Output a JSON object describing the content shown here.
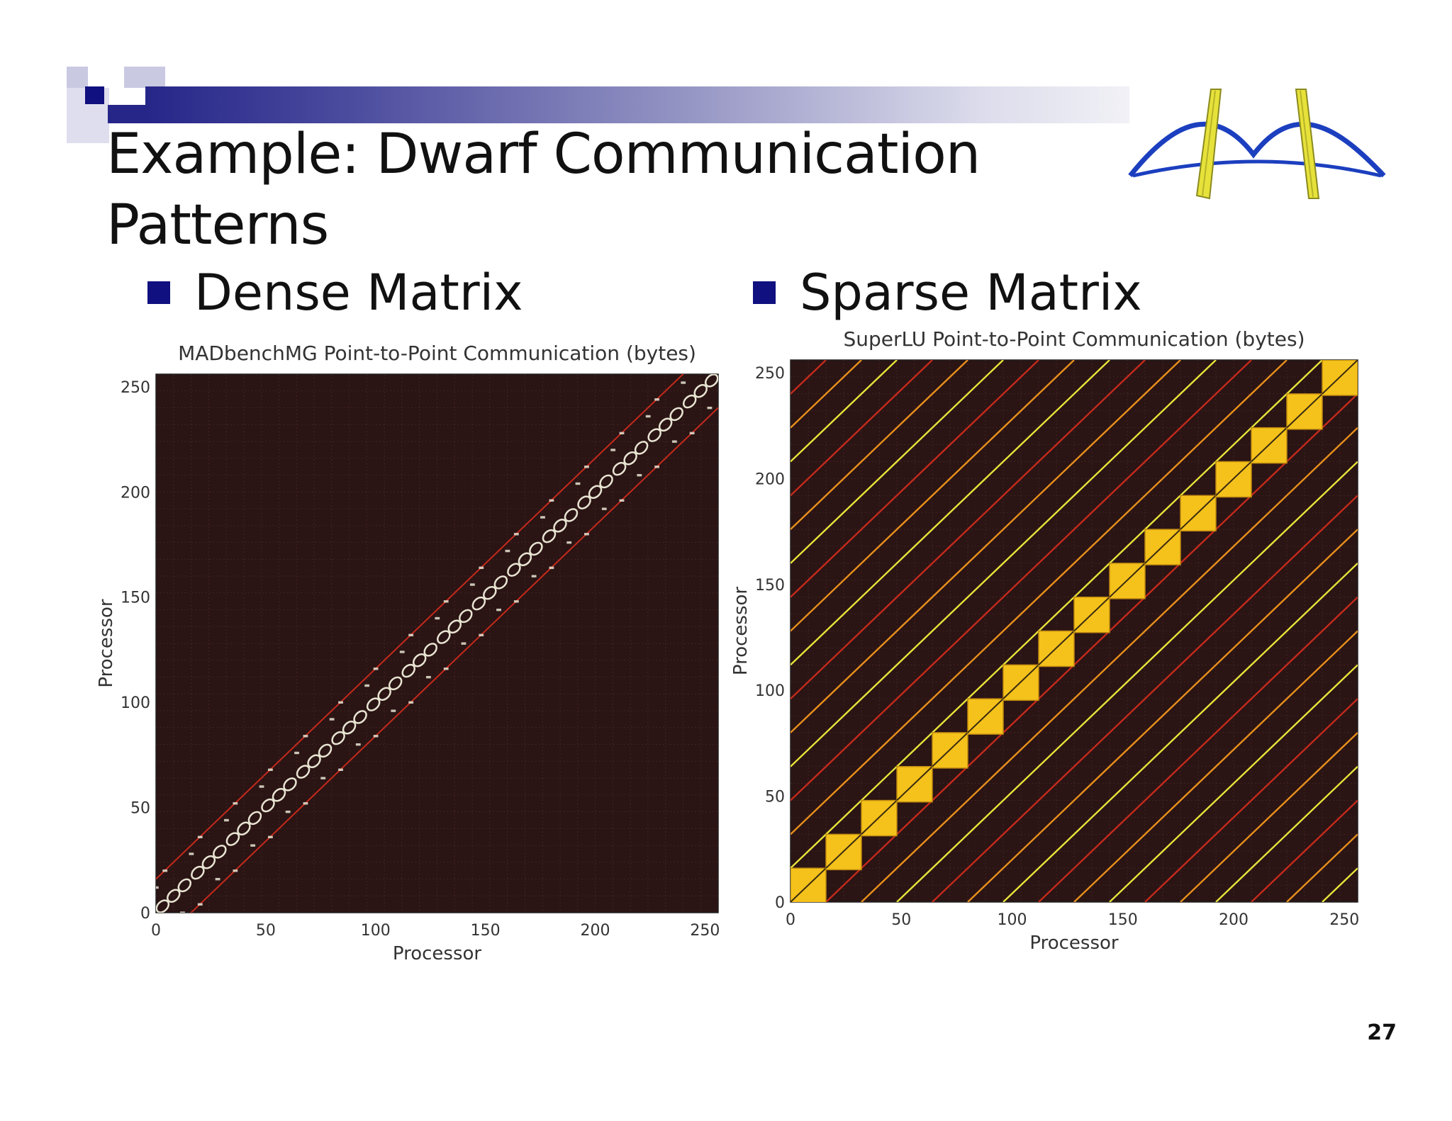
{
  "slide": {
    "title_line1": "Example: Dwarf Communication",
    "title_line2": "Patterns",
    "page_number": "27",
    "bullets": [
      {
        "label": "Dense Matrix"
      },
      {
        "label": "Sparse Matrix"
      }
    ]
  },
  "colors": {
    "header_bar_start": "#262689",
    "header_bar_end": "#f1f1f6",
    "bullet": "#101080",
    "heatmap_background": "#2a1414",
    "dense_marker": "#e8e4d2",
    "sparse_block": "#f5c21b",
    "band_red": "#c42a1c",
    "band_orange": "#e8901c",
    "band_yellow": "#e6e43a"
  },
  "chart_data": [
    {
      "type": "heatmap",
      "title": "MADbenchMG Point-to-Point Communication (bytes)",
      "xlabel": "Processor",
      "ylabel": "Processor",
      "xlim": [
        0,
        256
      ],
      "ylim": [
        0,
        256
      ],
      "xticks": [
        0,
        50,
        100,
        150,
        200,
        250
      ],
      "yticks": [
        0,
        50,
        100,
        150,
        200,
        250
      ],
      "grid": true,
      "pattern": "diagonal band of 16-processor clusters with off-diagonal lines at offset ±16",
      "block_size": 16,
      "band_offsets": [
        -16,
        16
      ],
      "diagonal_blocks": [
        0,
        16,
        32,
        48,
        64,
        80,
        96,
        112,
        128,
        144,
        160,
        176,
        192,
        208,
        224,
        240
      ]
    },
    {
      "type": "heatmap",
      "title": "SuperLU Point-to-Point Communication (bytes)",
      "xlabel": "Processor",
      "ylabel": "Processor",
      "xlim": [
        0,
        256
      ],
      "ylim": [
        0,
        256
      ],
      "xticks": [
        0,
        50,
        100,
        150,
        200,
        250
      ],
      "yticks": [
        0,
        50,
        100,
        150,
        200,
        250
      ],
      "grid": true,
      "pattern": "16x16 dense diagonal blocks with periodic diagonal lines every 16 processors",
      "block_size": 16,
      "diagonal_blocks": [
        0,
        16,
        32,
        48,
        64,
        80,
        96,
        112,
        128,
        144,
        160,
        176,
        192,
        208,
        224,
        240
      ],
      "diagonal_line_offsets": [
        -240,
        -224,
        -208,
        -192,
        -176,
        -160,
        -144,
        -128,
        -112,
        -96,
        -80,
        -64,
        -48,
        -32,
        -16,
        16,
        32,
        48,
        64,
        80,
        96,
        112,
        128,
        144,
        160,
        176,
        192,
        208,
        224,
        240
      ]
    }
  ]
}
